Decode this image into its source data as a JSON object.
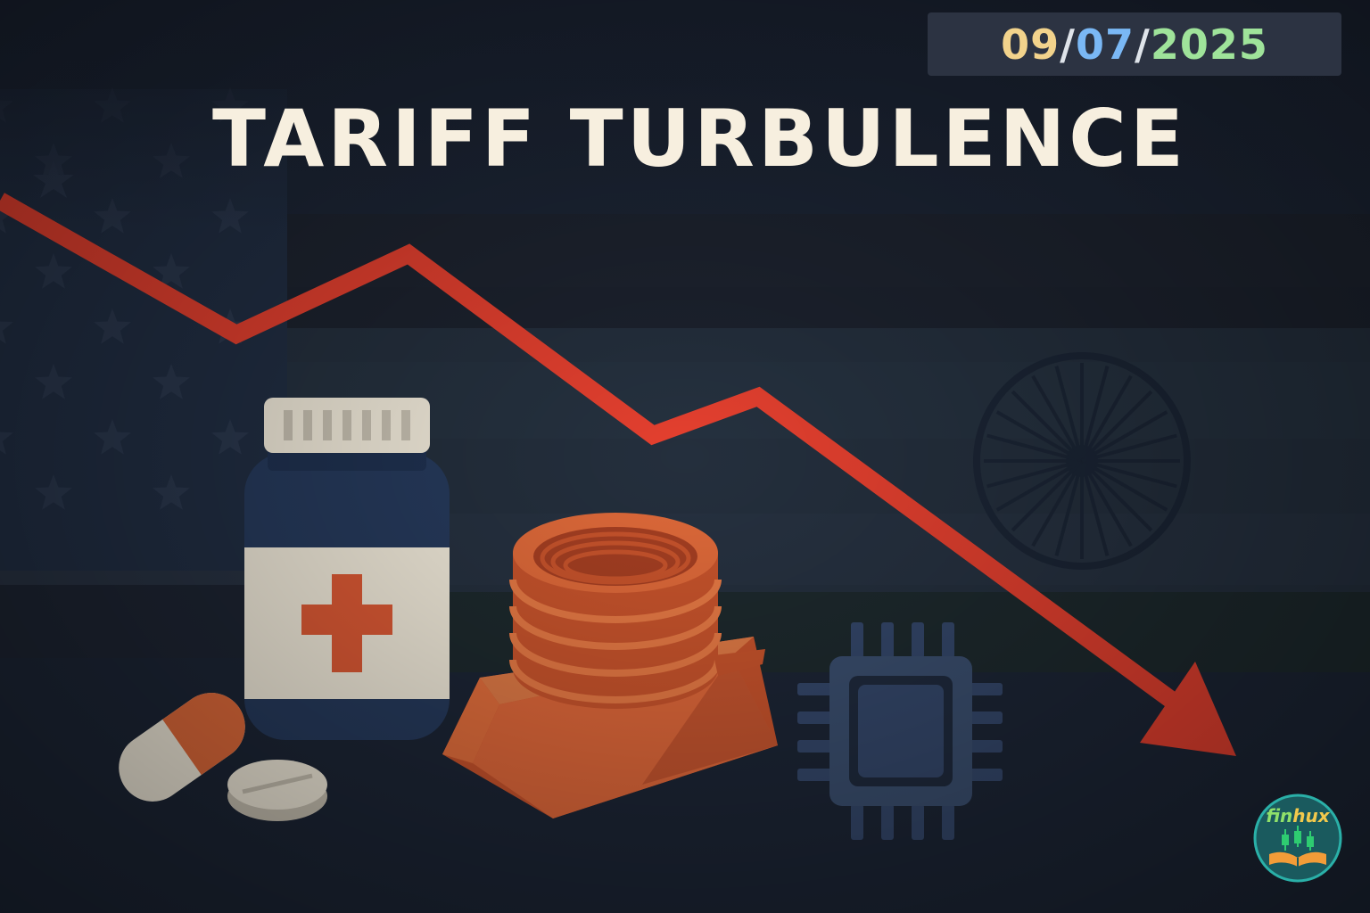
{
  "header": {
    "title": "TARIFF TURBULENCE",
    "date": {
      "day": "09",
      "sep1": "/",
      "month": "07",
      "sep2": "/",
      "year": "2025"
    }
  },
  "logo": {
    "brand": "finhux",
    "brand_prefix": "fin",
    "brand_suffix": "hux"
  },
  "colors": {
    "background": "#1a2232",
    "title": "#f7efdf",
    "date_day": "#f2d38c",
    "date_month": "#7ab8f5",
    "date_year": "#9fe39a",
    "date_sep": "#dfe4ea",
    "trend_arrow": "#e5402f",
    "copper": "#e06a3a",
    "bottle": "#263a5c",
    "chip": "#3a4e6e"
  },
  "icons": [
    "usa-flag-icon",
    "india-flag-icon",
    "ashoka-chakra-icon",
    "down-trend-arrow-icon",
    "medicine-bottle-icon",
    "capsule-icon",
    "pill-tablet-icon",
    "copper-coil-icon",
    "copper-ingot-icon",
    "microchip-icon",
    "candlestick-book-logo-icon"
  ]
}
